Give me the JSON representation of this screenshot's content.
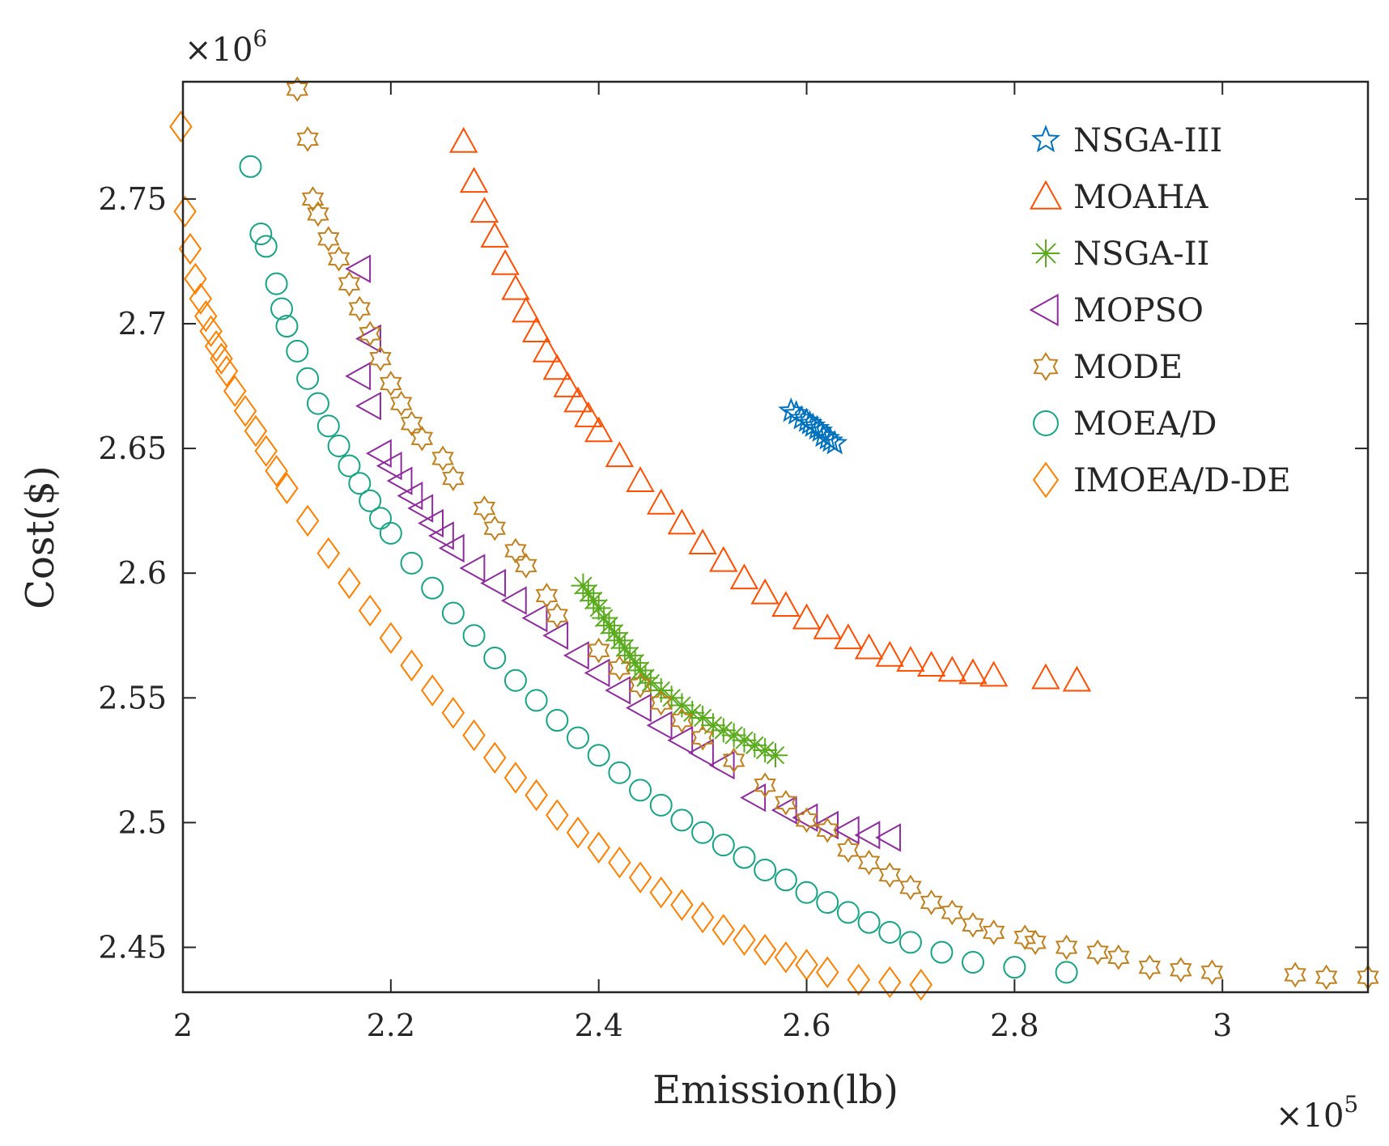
{
  "chart_data": {
    "type": "scatter",
    "xlabel": "Emission(lb)",
    "ylabel": "Cost($)",
    "x_exponent_label": "×10",
    "x_exponent_power": "5",
    "y_exponent_label": "×10",
    "y_exponent_power": "6",
    "xlim": [
      2.0,
      3.14
    ],
    "ylim": [
      2.432,
      2.797
    ],
    "xticks": [
      2,
      2.2,
      2.4,
      2.6,
      2.8,
      3
    ],
    "xtick_labels": [
      "2",
      "2.2",
      "2.4",
      "2.6",
      "2.8",
      "3"
    ],
    "yticks": [
      2.45,
      2.5,
      2.55,
      2.6,
      2.65,
      2.7,
      2.75
    ],
    "ytick_labels": [
      "2.45",
      "2.5",
      "2.55",
      "2.6",
      "2.65",
      "2.7",
      "2.75"
    ],
    "grid": false,
    "legend_position": "top-right",
    "series": [
      {
        "name": "NSGA-III",
        "marker": "star5",
        "color": "#0072BD",
        "x": [
          2.585,
          2.59,
          2.595,
          2.6,
          2.603,
          2.606,
          2.61,
          2.613,
          2.616,
          2.62,
          2.623,
          2.627
        ],
        "y": [
          2.665,
          2.664,
          2.662,
          2.661,
          2.66,
          2.659,
          2.658,
          2.657,
          2.655,
          2.654,
          2.653,
          2.652
        ]
      },
      {
        "name": "MOAHA",
        "marker": "triangle-up",
        "color": "#FF4E00",
        "x": [
          2.27,
          2.28,
          2.29,
          2.3,
          2.31,
          2.32,
          2.33,
          2.34,
          2.35,
          2.36,
          2.37,
          2.38,
          2.39,
          2.4,
          2.42,
          2.44,
          2.46,
          2.48,
          2.5,
          2.52,
          2.54,
          2.56,
          2.58,
          2.6,
          2.62,
          2.64,
          2.66,
          2.68,
          2.7,
          2.72,
          2.74,
          2.76,
          2.78,
          2.83,
          2.86
        ],
        "y": [
          2.773,
          2.757,
          2.745,
          2.735,
          2.724,
          2.714,
          2.705,
          2.697,
          2.689,
          2.682,
          2.675,
          2.669,
          2.663,
          2.657,
          2.647,
          2.637,
          2.628,
          2.62,
          2.612,
          2.605,
          2.598,
          2.592,
          2.587,
          2.582,
          2.578,
          2.574,
          2.57,
          2.567,
          2.565,
          2.563,
          2.561,
          2.56,
          2.559,
          2.558,
          2.557
        ]
      },
      {
        "name": "NSGA-II",
        "marker": "asterisk",
        "color": "#5AAB1E",
        "x": [
          2.385,
          2.39,
          2.395,
          2.4,
          2.405,
          2.41,
          2.415,
          2.42,
          2.425,
          2.43,
          2.435,
          2.44,
          2.445,
          2.45,
          2.46,
          2.47,
          2.48,
          2.49,
          2.5,
          2.51,
          2.52,
          2.53,
          2.54,
          2.55,
          2.56,
          2.57
        ],
        "y": [
          2.595,
          2.592,
          2.589,
          2.586,
          2.582,
          2.579,
          2.576,
          2.573,
          2.57,
          2.567,
          2.564,
          2.561,
          2.558,
          2.556,
          2.553,
          2.55,
          2.547,
          2.544,
          2.542,
          2.539,
          2.537,
          2.535,
          2.533,
          2.531,
          2.529,
          2.527
        ]
      },
      {
        "name": "MOPSO",
        "marker": "triangle-left",
        "color": "#8E2C9E",
        "x": [
          2.17,
          2.18,
          2.17,
          2.18,
          2.19,
          2.2,
          2.21,
          2.22,
          2.23,
          2.24,
          2.25,
          2.26,
          2.28,
          2.3,
          2.32,
          2.34,
          2.36,
          2.38,
          2.4,
          2.42,
          2.44,
          2.46,
          2.48,
          2.5,
          2.52,
          2.55,
          2.58,
          2.6,
          2.62,
          2.64,
          2.66,
          2.68
        ],
        "y": [
          2.722,
          2.694,
          2.679,
          2.667,
          2.648,
          2.643,
          2.637,
          2.631,
          2.626,
          2.62,
          2.615,
          2.61,
          2.602,
          2.596,
          2.589,
          2.582,
          2.575,
          2.567,
          2.56,
          2.553,
          2.546,
          2.539,
          2.533,
          2.528,
          2.523,
          2.51,
          2.505,
          2.502,
          2.499,
          2.497,
          2.495,
          2.494
        ]
      },
      {
        "name": "MODE",
        "marker": "hexagram",
        "color": "#C0801E",
        "x": [
          2.11,
          2.12,
          2.125,
          2.13,
          2.14,
          2.15,
          2.16,
          2.17,
          2.18,
          2.19,
          2.2,
          2.21,
          2.22,
          2.23,
          2.25,
          2.26,
          2.29,
          2.3,
          2.32,
          2.33,
          2.35,
          2.36,
          2.4,
          2.42,
          2.44,
          2.46,
          2.48,
          2.5,
          2.53,
          2.56,
          2.58,
          2.6,
          2.62,
          2.64,
          2.66,
          2.68,
          2.7,
          2.72,
          2.74,
          2.76,
          2.78,
          2.81,
          2.82,
          2.85,
          2.88,
          2.9,
          2.93,
          2.96,
          2.99,
          3.07,
          3.1,
          3.14
        ],
        "y": [
          2.794,
          2.774,
          2.75,
          2.744,
          2.734,
          2.726,
          2.716,
          2.706,
          2.696,
          2.686,
          2.676,
          2.668,
          2.66,
          2.654,
          2.646,
          2.638,
          2.626,
          2.618,
          2.609,
          2.603,
          2.591,
          2.583,
          2.569,
          2.562,
          2.555,
          2.548,
          2.541,
          2.534,
          2.525,
          2.515,
          2.508,
          2.501,
          2.497,
          2.489,
          2.484,
          2.479,
          2.474,
          2.468,
          2.464,
          2.459,
          2.456,
          2.454,
          2.452,
          2.45,
          2.448,
          2.446,
          2.442,
          2.441,
          2.44,
          2.439,
          2.438,
          2.438
        ]
      },
      {
        "name": "MOEA/D",
        "marker": "circle",
        "color": "#17A484",
        "x": [
          2.065,
          2.075,
          2.08,
          2.09,
          2.095,
          2.1,
          2.11,
          2.12,
          2.13,
          2.14,
          2.15,
          2.16,
          2.17,
          2.18,
          2.19,
          2.2,
          2.22,
          2.24,
          2.26,
          2.28,
          2.3,
          2.32,
          2.34,
          2.36,
          2.38,
          2.4,
          2.42,
          2.44,
          2.46,
          2.48,
          2.5,
          2.52,
          2.54,
          2.56,
          2.58,
          2.6,
          2.62,
          2.64,
          2.66,
          2.68,
          2.7,
          2.73,
          2.76,
          2.8,
          2.85
        ],
        "y": [
          2.763,
          2.736,
          2.731,
          2.716,
          2.706,
          2.699,
          2.689,
          2.678,
          2.668,
          2.659,
          2.651,
          2.643,
          2.636,
          2.629,
          2.622,
          2.616,
          2.604,
          2.594,
          2.584,
          2.575,
          2.566,
          2.557,
          2.549,
          2.541,
          2.534,
          2.527,
          2.52,
          2.513,
          2.507,
          2.501,
          2.496,
          2.491,
          2.486,
          2.481,
          2.477,
          2.472,
          2.468,
          2.464,
          2.46,
          2.456,
          2.452,
          2.448,
          2.444,
          2.442,
          2.44
        ]
      },
      {
        "name": "IMOEA/D-DE",
        "marker": "diamond",
        "color": "#FF8000",
        "x": [
          1.998,
          2.002,
          2.007,
          2.012,
          2.017,
          2.022,
          2.027,
          2.032,
          2.037,
          2.042,
          2.05,
          2.06,
          2.07,
          2.08,
          2.09,
          2.1,
          2.12,
          2.14,
          2.16,
          2.18,
          2.2,
          2.22,
          2.24,
          2.26,
          2.28,
          2.3,
          2.32,
          2.34,
          2.36,
          2.38,
          2.4,
          2.42,
          2.44,
          2.46,
          2.48,
          2.5,
          2.52,
          2.54,
          2.56,
          2.58,
          2.6,
          2.62,
          2.65,
          2.68,
          2.71
        ],
        "y": [
          2.779,
          2.745,
          2.73,
          2.718,
          2.71,
          2.703,
          2.697,
          2.691,
          2.686,
          2.681,
          2.673,
          2.665,
          2.657,
          2.649,
          2.641,
          2.634,
          2.621,
          2.608,
          2.596,
          2.585,
          2.574,
          2.563,
          2.553,
          2.544,
          2.535,
          2.526,
          2.518,
          2.511,
          2.503,
          2.496,
          2.49,
          2.484,
          2.478,
          2.472,
          2.467,
          2.462,
          2.457,
          2.453,
          2.449,
          2.446,
          2.443,
          2.44,
          2.437,
          2.436,
          2.435
        ]
      }
    ]
  }
}
